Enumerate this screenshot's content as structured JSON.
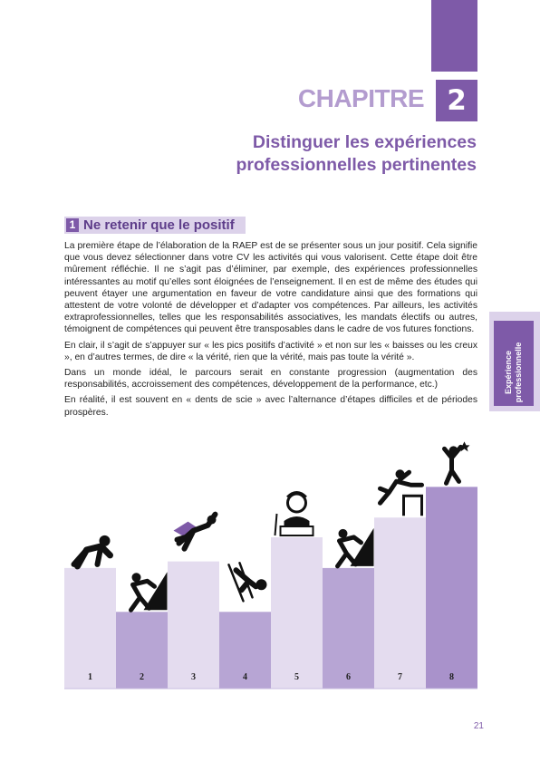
{
  "chapter": {
    "word": "CHAPITRE",
    "number": "2"
  },
  "title": {
    "line1": "Distinguer les expériences",
    "line2": "professionnelles pertinentes"
  },
  "section": {
    "number": "1",
    "title": "Ne retenir que le positif"
  },
  "paragraphs": [
    "La première étape de l’élaboration de la RAEP est de se présenter sous un jour positif. Cela signifie que vous devez sélectionner dans votre CV les activités qui vous valorisent. Cette étape doit être mûrement réfléchie. Il ne s’agit pas d’éliminer, par exemple, des expériences professionnelles intéressantes au motif qu’elles sont éloignées de l’enseignement. Il en est de même des études qui peuvent étayer une argumentation en faveur de votre candidature ainsi que des formations qui attestent de votre volonté de développer et d’adapter vos compétences. Par ailleurs, les activités extraprofessionnelles, telles que les responsabilités associatives, les mandats électifs ou autres, témoignent de compétences qui peuvent être transposables dans le cadre de vos futures fonctions.",
    "En clair, il s’agit de s’appuyer sur « les pics positifs d’activité » et non sur les « baisses ou les creux », en d’autres termes, de dire « la vérité, rien que la vérité, mais pas toute la vérité ».",
    "Dans un monde idéal, le parcours serait en constante progression (augmentation des responsabilités, accroissement des compétences, développement de la performance, etc.)",
    "En réalité, il est souvent en « dents de scie » avec l’alternance d’étapes difficiles et de périodes prospères."
  ],
  "side_tab": {
    "line1": "Expérience",
    "line2": "professionnelle"
  },
  "page_number": "21",
  "colors": {
    "purple": "#7e5aa8",
    "lavender": "#b39ccf",
    "light": "#dcd2ea",
    "bar_light": "#e4dcef",
    "bar_mid": "#b7a5d4",
    "bar_dark": "#a992cb"
  },
  "steps": [
    {
      "label": "1",
      "level": 0.55,
      "tone": "light",
      "icon": "sprinter-crouch-icon"
    },
    {
      "label": "2",
      "level": 0.35,
      "tone": "mid",
      "icon": "climber-icon"
    },
    {
      "label": "3",
      "level": 0.58,
      "tone": "light",
      "icon": "superhero-flying-icon"
    },
    {
      "label": "4",
      "level": 0.35,
      "tone": "mid",
      "icon": "falling-skier-icon"
    },
    {
      "label": "5",
      "level": 0.69,
      "tone": "light",
      "icon": "student-at-desk-icon"
    },
    {
      "label": "6",
      "level": 0.55,
      "tone": "mid",
      "icon": "climber-icon"
    },
    {
      "label": "7",
      "level": 0.78,
      "tone": "light",
      "icon": "hurdler-icon"
    },
    {
      "label": "8",
      "level": 0.92,
      "tone": "dark",
      "icon": "winner-jumping-icon"
    }
  ]
}
